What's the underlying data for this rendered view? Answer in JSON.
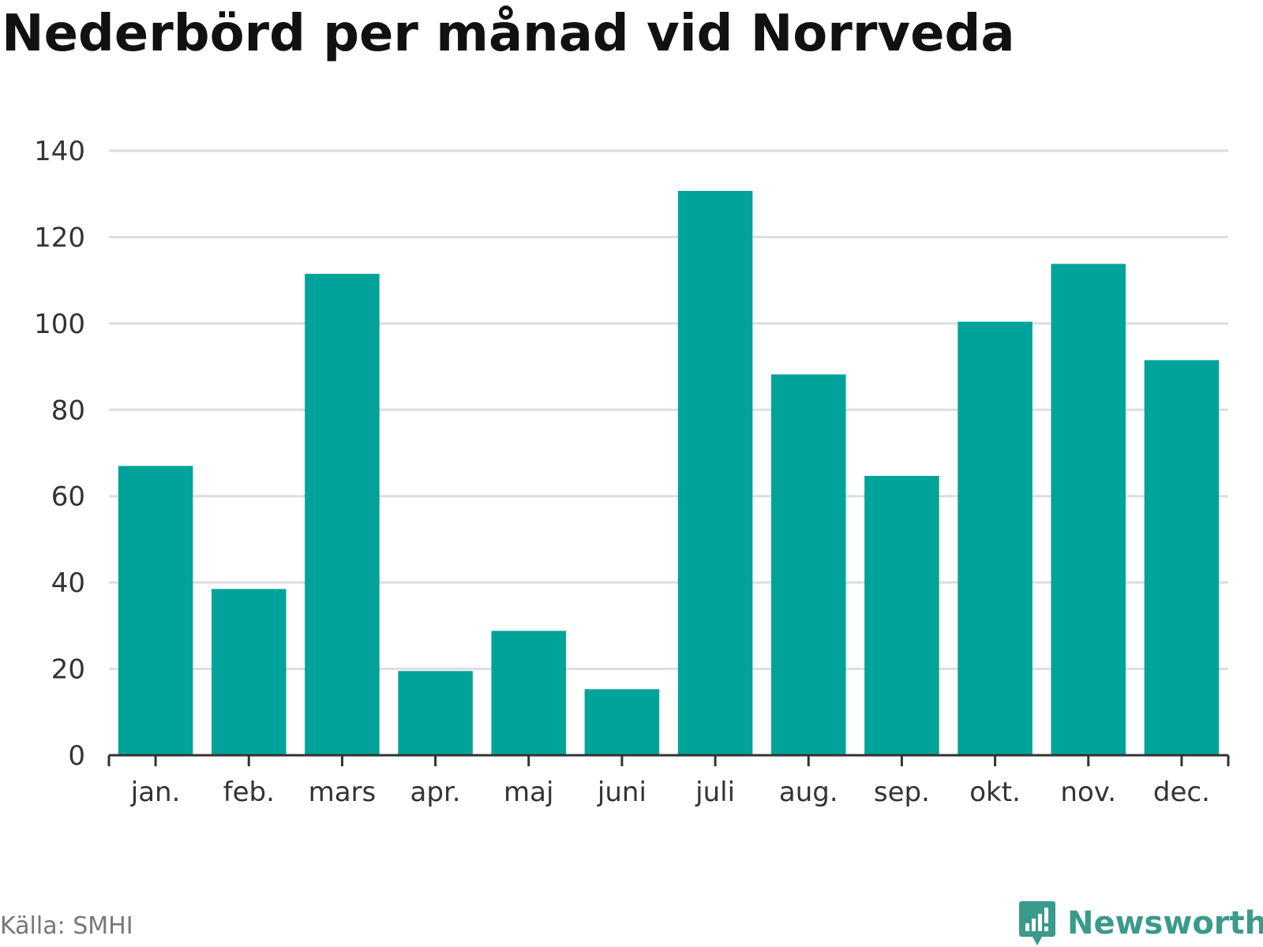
{
  "source": "Källa: SMHI",
  "brand": {
    "name": "Newsworthy",
    "icon": "newsworthy-logo-icon",
    "color": "#3a9a8c"
  },
  "chart_data": {
    "type": "bar",
    "title": "Nederbörd per månad vid Norrveda",
    "xlabel": "",
    "ylabel": "",
    "categories": [
      "jan.",
      "feb.",
      "mars",
      "apr.",
      "maj",
      "juni",
      "juli",
      "aug.",
      "sep.",
      "okt.",
      "nov.",
      "dec."
    ],
    "values": [
      67,
      38.5,
      111.5,
      19.5,
      28.8,
      15.3,
      130.7,
      88.2,
      64.7,
      100.4,
      113.8,
      91.5
    ],
    "ylim": [
      0,
      140
    ],
    "yticks": [
      "0",
      "20",
      "40",
      "60",
      "80",
      "100",
      "120",
      "140"
    ],
    "grid": true,
    "legend": "none",
    "bar_color": "#00a39a",
    "grid_color": "#dddddd",
    "axis_color": "#333333"
  }
}
